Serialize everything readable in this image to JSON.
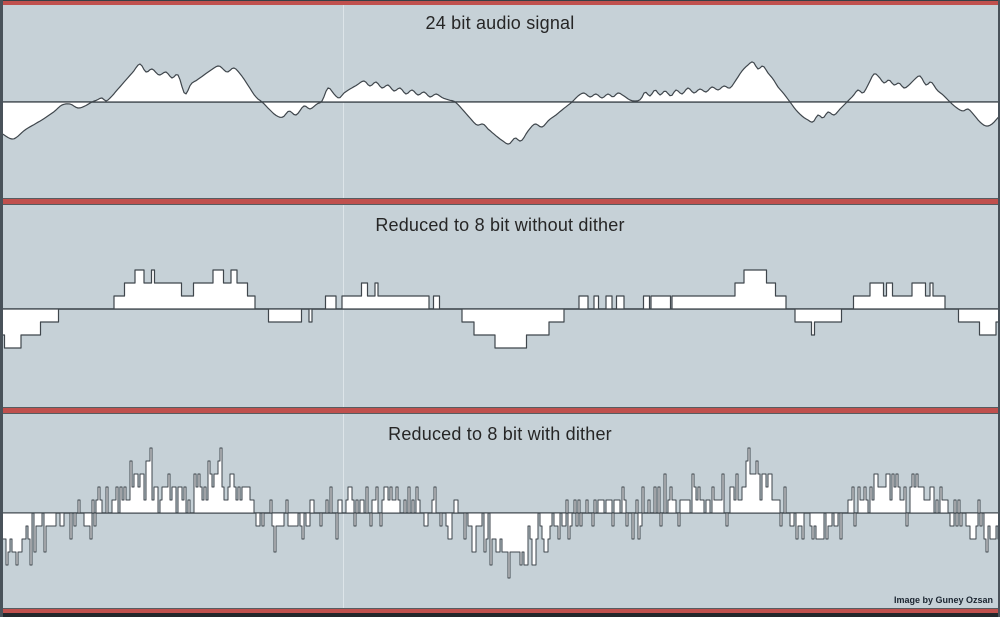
{
  "figure": {
    "attribution": "Image by Guney Ozsan"
  },
  "colors": {
    "background": "#c6d1d7",
    "waveform_fill": "#ffffff",
    "waveform_stroke": "#3f464c",
    "zero_line": "#4e585f",
    "divider_red": "#c0504d",
    "divider_edge": "#565c60",
    "frame_dark": "#49525a",
    "frame_bottom": "#23272b",
    "title_text": "#262626",
    "attribution_text": "#1b2530"
  },
  "chart_data": {
    "type": "area",
    "x_range": [
      0,
      1000
    ],
    "y_unit": "amplitude in px, positive = up from zero line",
    "zero_baseline": 0,
    "grid": false,
    "legend": false,
    "quant_step": 13,
    "dither_amp": 30,
    "dither_seed": 11,
    "panels": [
      {
        "title": "24 bit audio signal",
        "processing": "smooth"
      },
      {
        "title": "Reduced to 8 bit without dither",
        "processing": "quantized"
      },
      {
        "title": "Reduced to 8 bit with dither",
        "processing": "dithered"
      }
    ],
    "signal_points": [
      [
        0,
        -31
      ],
      [
        13,
        -37
      ],
      [
        25,
        -28
      ],
      [
        35,
        -22
      ],
      [
        45,
        -16
      ],
      [
        55,
        -9
      ],
      [
        62,
        -3
      ],
      [
        70,
        -2
      ],
      [
        78,
        -6
      ],
      [
        85,
        -4
      ],
      [
        92,
        0
      ],
      [
        97,
        2
      ],
      [
        102,
        4
      ],
      [
        106,
        1
      ],
      [
        111,
        5
      ],
      [
        117,
        12
      ],
      [
        125,
        21
      ],
      [
        133,
        30
      ],
      [
        140,
        38
      ],
      [
        146,
        30
      ],
      [
        152,
        33
      ],
      [
        159,
        27
      ],
      [
        166,
        30
      ],
      [
        172,
        24
      ],
      [
        178,
        27
      ],
      [
        185,
        8
      ],
      [
        191,
        18
      ],
      [
        197,
        22
      ],
      [
        204,
        27
      ],
      [
        211,
        32
      ],
      [
        219,
        36
      ],
      [
        227,
        30
      ],
      [
        234,
        34
      ],
      [
        241,
        27
      ],
      [
        247,
        18
      ],
      [
        256,
        5
      ],
      [
        262,
        0
      ],
      [
        270,
        -8
      ],
      [
        277,
        -14
      ],
      [
        283,
        -15
      ],
      [
        289,
        -9
      ],
      [
        296,
        -13
      ],
      [
        304,
        -4
      ],
      [
        310,
        -7
      ],
      [
        317,
        -2
      ],
      [
        322,
        1
      ],
      [
        328,
        14
      ],
      [
        334,
        8
      ],
      [
        339,
        4
      ],
      [
        344,
        9
      ],
      [
        350,
        13
      ],
      [
        357,
        17
      ],
      [
        364,
        21
      ],
      [
        370,
        16
      ],
      [
        376,
        20
      ],
      [
        382,
        14
      ],
      [
        388,
        17
      ],
      [
        394,
        11
      ],
      [
        400,
        14
      ],
      [
        406,
        8
      ],
      [
        412,
        12
      ],
      [
        418,
        7
      ],
      [
        424,
        10
      ],
      [
        430,
        5
      ],
      [
        436,
        8
      ],
      [
        443,
        4
      ],
      [
        449,
        2
      ],
      [
        455,
        0
      ],
      [
        463,
        -8
      ],
      [
        470,
        -16
      ],
      [
        477,
        -23
      ],
      [
        483,
        -22
      ],
      [
        488,
        -27
      ],
      [
        495,
        -33
      ],
      [
        503,
        -39
      ],
      [
        509,
        -42
      ],
      [
        515,
        -36
      ],
      [
        521,
        -39
      ],
      [
        528,
        -29
      ],
      [
        535,
        -22
      ],
      [
        542,
        -25
      ],
      [
        549,
        -18
      ],
      [
        556,
        -13
      ],
      [
        562,
        -8
      ],
      [
        567,
        -4
      ],
      [
        572,
        0
      ],
      [
        578,
        6
      ],
      [
        584,
        9
      ],
      [
        590,
        5
      ],
      [
        596,
        8
      ],
      [
        602,
        4
      ],
      [
        608,
        8
      ],
      [
        613,
        5
      ],
      [
        618,
        9
      ],
      [
        624,
        6
      ],
      [
        630,
        2
      ],
      [
        636,
        1
      ],
      [
        641,
        3
      ],
      [
        645,
        10
      ],
      [
        650,
        6
      ],
      [
        655,
        12
      ],
      [
        660,
        7
      ],
      [
        665,
        11
      ],
      [
        671,
        6
      ],
      [
        676,
        12
      ],
      [
        682,
        8
      ],
      [
        688,
        14
      ],
      [
        694,
        9
      ],
      [
        700,
        13
      ],
      [
        706,
        10
      ],
      [
        712,
        15
      ],
      [
        718,
        12
      ],
      [
        724,
        16
      ],
      [
        730,
        14
      ],
      [
        736,
        22
      ],
      [
        742,
        31
      ],
      [
        748,
        37
      ],
      [
        753,
        40
      ],
      [
        758,
        33
      ],
      [
        763,
        36
      ],
      [
        768,
        29
      ],
      [
        773,
        23
      ],
      [
        778,
        15
      ],
      [
        784,
        8
      ],
      [
        790,
        0
      ],
      [
        796,
        -8
      ],
      [
        802,
        -14
      ],
      [
        808,
        -18
      ],
      [
        813,
        -20
      ],
      [
        818,
        -13
      ],
      [
        823,
        -16
      ],
      [
        828,
        -10
      ],
      [
        834,
        -13
      ],
      [
        840,
        -7
      ],
      [
        847,
        0
      ],
      [
        853,
        6
      ],
      [
        858,
        12
      ],
      [
        863,
        9
      ],
      [
        868,
        17
      ],
      [
        874,
        28
      ],
      [
        879,
        25
      ],
      [
        884,
        19
      ],
      [
        889,
        22
      ],
      [
        894,
        17
      ],
      [
        899,
        19
      ],
      [
        904,
        14
      ],
      [
        909,
        17
      ],
      [
        914,
        22
      ],
      [
        920,
        26
      ],
      [
        926,
        17
      ],
      [
        931,
        20
      ],
      [
        937,
        12
      ],
      [
        943,
        7
      ],
      [
        950,
        0
      ],
      [
        957,
        -6
      ],
      [
        963,
        -9
      ],
      [
        968,
        -7
      ],
      [
        974,
        -13
      ],
      [
        980,
        -20
      ],
      [
        986,
        -24
      ],
      [
        992,
        -22
      ],
      [
        1000,
        -14
      ]
    ]
  }
}
